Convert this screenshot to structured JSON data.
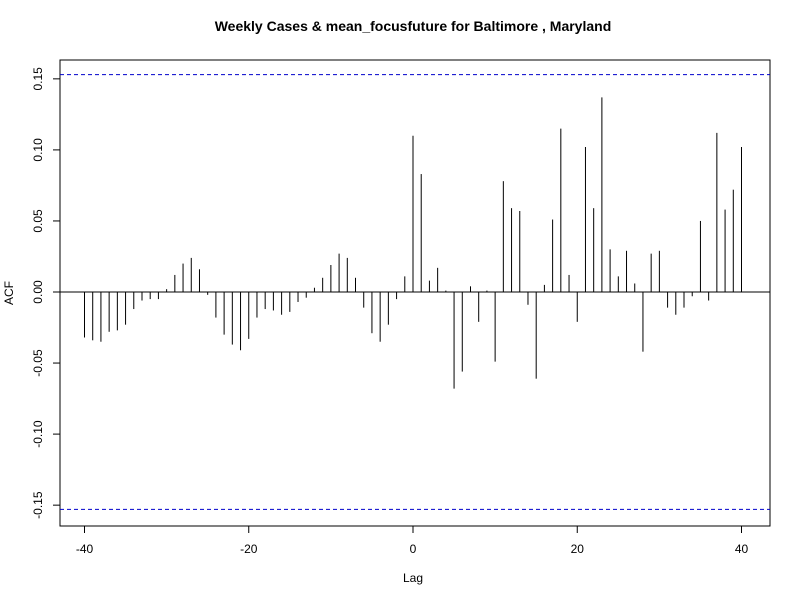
{
  "chart_data": {
    "type": "bar",
    "title": "Weekly Cases & mean_focusfuture for Baltimore , Maryland",
    "xlabel": "Lag",
    "ylabel": "ACF",
    "xlim": [
      -40,
      40
    ],
    "ylim": [
      -0.15,
      0.15
    ],
    "x_ticks": [
      -40,
      -20,
      0,
      20,
      40
    ],
    "y_ticks": [
      -0.15,
      -0.1,
      -0.05,
      0.0,
      0.05,
      0.1,
      0.15
    ],
    "x_tick_labels": [
      "-40",
      "-20",
      "0",
      "20",
      "40"
    ],
    "y_tick_labels": [
      "-0.15",
      "-0.10",
      "-0.05",
      "0.00",
      "0.05",
      "0.10",
      "0.15"
    ],
    "confidence_bound": 0.153,
    "colors": {
      "bars": "#000000",
      "bounds": "#0000cc",
      "zero_line": "#000000"
    },
    "lags": [
      -40,
      -39,
      -38,
      -37,
      -36,
      -35,
      -34,
      -33,
      -32,
      -31,
      -30,
      -29,
      -28,
      -27,
      -26,
      -25,
      -24,
      -23,
      -22,
      -21,
      -20,
      -19,
      -18,
      -17,
      -16,
      -15,
      -14,
      -13,
      -12,
      -11,
      -10,
      -9,
      -8,
      -7,
      -6,
      -5,
      -4,
      -3,
      -2,
      -1,
      0,
      1,
      2,
      3,
      4,
      5,
      6,
      7,
      8,
      9,
      10,
      11,
      12,
      13,
      14,
      15,
      16,
      17,
      18,
      19,
      20,
      21,
      22,
      23,
      24,
      25,
      26,
      27,
      28,
      29,
      30,
      31,
      32,
      33,
      34,
      35,
      36,
      37,
      38,
      39,
      40
    ],
    "values": [
      -0.032,
      -0.034,
      -0.035,
      -0.028,
      -0.027,
      -0.023,
      -0.012,
      -0.006,
      -0.005,
      -0.005,
      0.002,
      0.012,
      0.02,
      0.024,
      0.016,
      -0.002,
      -0.018,
      -0.03,
      -0.037,
      -0.041,
      -0.033,
      -0.018,
      -0.012,
      -0.013,
      -0.016,
      -0.014,
      -0.007,
      -0.004,
      0.003,
      0.01,
      0.019,
      0.027,
      0.024,
      0.01,
      -0.011,
      -0.029,
      -0.035,
      -0.023,
      -0.005,
      0.011,
      0.11,
      0.083,
      0.008,
      0.017,
      0.001,
      -0.068,
      -0.056,
      0.004,
      -0.021,
      0.001,
      -0.049,
      0.078,
      0.059,
      0.057,
      -0.009,
      -0.061,
      0.005,
      0.051,
      0.115,
      0.012,
      -0.021,
      0.102,
      0.059,
      0.137,
      0.03,
      0.011,
      0.029,
      0.006,
      -0.042,
      0.027,
      0.029,
      -0.011,
      -0.016,
      -0.011,
      -0.003,
      0.05,
      -0.006,
      0.112,
      0.058,
      0.072,
      0.102
    ]
  }
}
